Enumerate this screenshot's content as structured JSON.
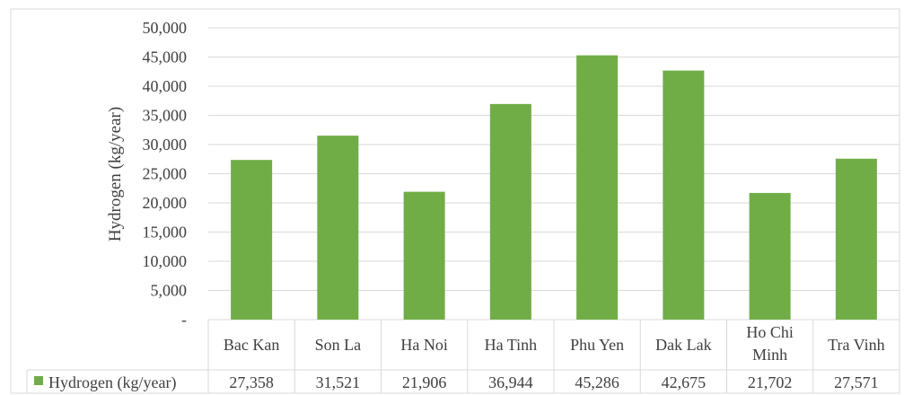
{
  "chart_data": {
    "type": "bar",
    "categories": [
      [
        "Bac Kan"
      ],
      [
        "Son La"
      ],
      [
        "Ha Noi"
      ],
      [
        "Ha Tinh"
      ],
      [
        "Phu Yen"
      ],
      [
        "Dak Lak"
      ],
      [
        "Ho Chi",
        "Minh"
      ],
      [
        "Tra Vinh"
      ]
    ],
    "series": [
      {
        "name": "Hydrogen (kg/year)",
        "values": [
          27358,
          31521,
          21906,
          36944,
          45286,
          42675,
          21702,
          27571
        ],
        "labels": [
          "27,358",
          "31,521",
          "21,906",
          "36,944",
          "45,286",
          "42,675",
          "21,702",
          "27,571"
        ],
        "color": "#70ad47"
      }
    ],
    "ylabel": "Hydrogen  (kg/year)",
    "ylim": [
      0,
      50000
    ],
    "yticks": [
      0,
      5000,
      10000,
      15000,
      20000,
      25000,
      30000,
      35000,
      40000,
      45000,
      50000
    ],
    "ytick_labels": [
      "-",
      "5,000",
      "10,000",
      "15,000",
      "20,000",
      "25,000",
      "30,000",
      "35,000",
      "40,000",
      "45,000",
      "50,000"
    ],
    "grid": true,
    "data_table": true
  }
}
